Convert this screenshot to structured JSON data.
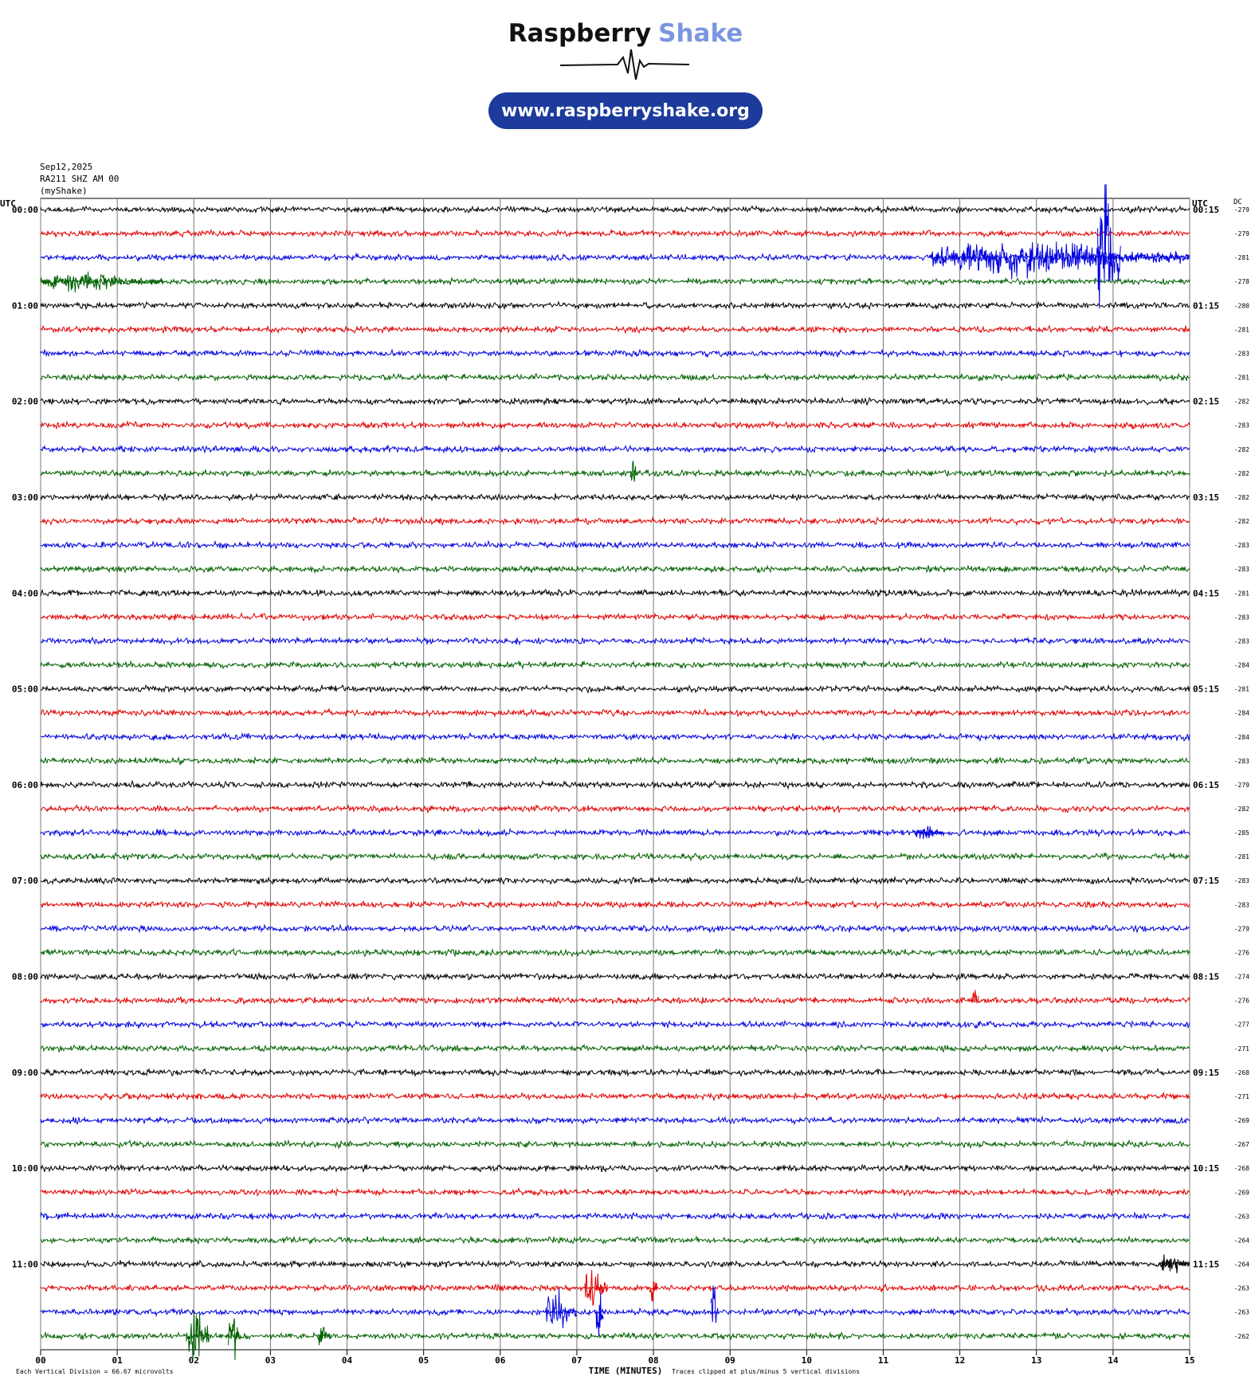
{
  "header": {
    "brand_1": "Raspberry",
    "brand_2": "Shake",
    "url": "www.raspberryshake.org"
  },
  "chart_data": {
    "type": "helicorder",
    "info": [
      "Sep12,2025",
      "RA211 SHZ AM 00",
      "(myShake)"
    ],
    "left_axis_label": "UTC",
    "right_axis_label": "UTC",
    "dc_label": "DC",
    "x_label": "TIME (MINUTES)",
    "xlim": [
      0,
      15
    ],
    "xticks": [
      {
        "value": 0,
        "label": "00"
      },
      {
        "value": 1,
        "label": "01"
      },
      {
        "value": 2,
        "label": "02"
      },
      {
        "value": 3,
        "label": "03"
      },
      {
        "value": 4,
        "label": "04"
      },
      {
        "value": 5,
        "label": "05"
      },
      {
        "value": 6,
        "label": "06"
      },
      {
        "value": 7,
        "label": "07"
      },
      {
        "value": 8,
        "label": "08"
      },
      {
        "value": 9,
        "label": "09"
      },
      10,
      11,
      12,
      13,
      14,
      15
    ],
    "grid": true,
    "colors": [
      "#000000",
      "#e00000",
      "#0000e0",
      "#006000"
    ],
    "left_labels": [
      "00:00",
      "01:00",
      "02:00",
      "03:00",
      "04:00",
      "05:00",
      "06:00",
      "07:00",
      "08:00",
      "09:00",
      "10:00",
      "11:00"
    ],
    "right_labels": [
      "00:15",
      "01:15",
      "02:15",
      "03:15",
      "04:15",
      "05:15",
      "06:15",
      "07:15",
      "08:15",
      "09:15",
      "10:15",
      "11:15"
    ],
    "dc": [
      -279,
      -279,
      -281,
      -278,
      -280,
      -281,
      -283,
      -281,
      -282,
      -283,
      -282,
      -282,
      -282,
      -282,
      -283,
      -283,
      -281,
      -283,
      -283,
      -284,
      -281,
      -284,
      -284,
      -283,
      -279,
      -282,
      -285,
      -281,
      -283,
      -283,
      -279,
      -276,
      -274,
      -276,
      -277,
      -271,
      -268,
      -271,
      -269,
      -267,
      -268,
      -269,
      -263,
      -264,
      -264,
      -263,
      -263,
      -262
    ],
    "events": [
      {
        "row": 2,
        "start": 11.6,
        "end": 15,
        "amp": 1
      },
      {
        "row": 2,
        "start": 13.8,
        "end": 14.1,
        "amp": 5
      },
      {
        "row": 3,
        "start": 0,
        "end": 1.6,
        "amp": 0.6
      },
      {
        "row": 11,
        "start": 7.7,
        "end": 7.8,
        "amp": 1.2
      },
      {
        "row": 26,
        "start": 11.4,
        "end": 11.8,
        "amp": 0.5
      },
      {
        "row": 33,
        "start": 12.15,
        "end": 12.25,
        "amp": 0.8
      },
      {
        "row": 44,
        "start": 14.6,
        "end": 15,
        "amp": 0.6
      },
      {
        "row": 45,
        "start": 7.1,
        "end": 7.4,
        "amp": 1.3
      },
      {
        "row": 45,
        "start": 7.95,
        "end": 8.05,
        "amp": 1.2
      },
      {
        "row": 46,
        "start": 6.6,
        "end": 7,
        "amp": 1.2
      },
      {
        "row": 46,
        "start": 7.25,
        "end": 7.35,
        "amp": 2
      },
      {
        "row": 46,
        "start": 8.75,
        "end": 8.85,
        "amp": 2
      },
      {
        "row": 47,
        "start": 1.9,
        "end": 2.2,
        "amp": 2
      },
      {
        "row": 47,
        "start": 2.45,
        "end": 2.6,
        "amp": 1.6
      },
      {
        "row": 47,
        "start": 3.6,
        "end": 3.8,
        "amp": 0.6
      }
    ],
    "footer": [
      "Each Vertical Division =   66.67 microvolts",
      "Traces clipped at plus/minus 5 vertical divisions"
    ]
  }
}
